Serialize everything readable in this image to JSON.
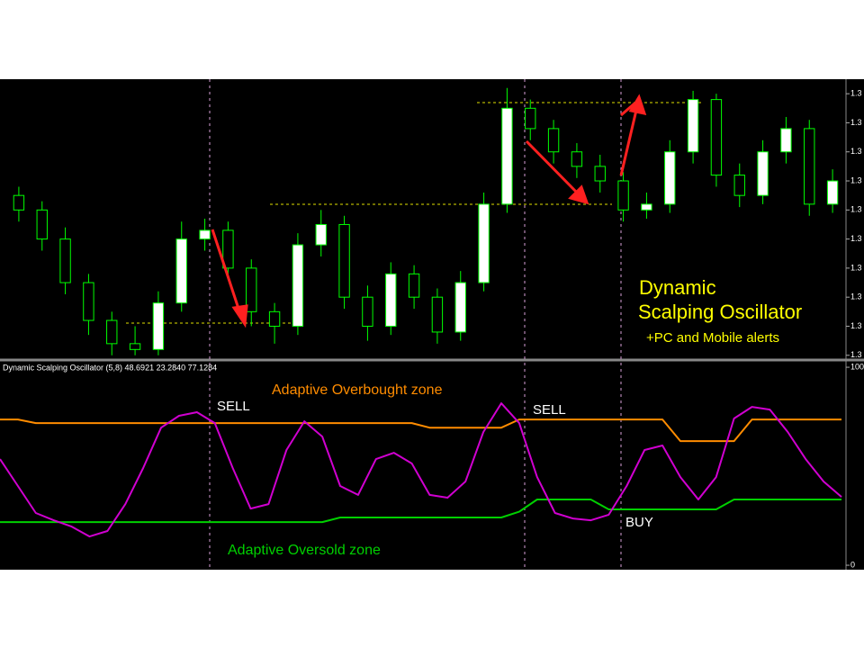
{
  "chart_data": [
    {
      "type": "candlestick",
      "open": [
        1.3455,
        1.345,
        1.344,
        1.3425,
        1.3412,
        1.3404,
        1.3402,
        1.3418,
        1.344,
        1.3443,
        1.343,
        1.3415,
        1.341,
        1.3438,
        1.3445,
        1.342,
        1.341,
        1.3428,
        1.342,
        1.3408,
        1.3425,
        1.3452,
        1.3485,
        1.3478,
        1.347,
        1.3465,
        1.346,
        1.345,
        1.3452,
        1.347,
        1.3488,
        1.3462,
        1.3455,
        1.347,
        1.3478,
        1.3452
      ],
      "high": [
        1.3458,
        1.3453,
        1.3444,
        1.3428,
        1.3415,
        1.341,
        1.3422,
        1.3446,
        1.3447,
        1.3446,
        1.3433,
        1.3418,
        1.3442,
        1.345,
        1.3448,
        1.3424,
        1.3432,
        1.3431,
        1.3423,
        1.3429,
        1.3456,
        1.3492,
        1.3488,
        1.3481,
        1.3473,
        1.3469,
        1.3463,
        1.3456,
        1.3474,
        1.3491,
        1.349,
        1.3466,
        1.3474,
        1.3482,
        1.3481,
        1.3464
      ],
      "low": [
        1.3446,
        1.3436,
        1.3421,
        1.3407,
        1.34,
        1.34,
        1.34,
        1.3415,
        1.3436,
        1.3426,
        1.341,
        1.3404,
        1.3407,
        1.3434,
        1.3416,
        1.3405,
        1.3407,
        1.3416,
        1.3404,
        1.3405,
        1.3422,
        1.3449,
        1.3474,
        1.3466,
        1.3461,
        1.3456,
        1.3446,
        1.3447,
        1.3449,
        1.3466,
        1.3458,
        1.3451,
        1.3452,
        1.3466,
        1.3448,
        1.3449
      ],
      "close": [
        1.345,
        1.344,
        1.3425,
        1.3412,
        1.3404,
        1.3402,
        1.3418,
        1.344,
        1.3443,
        1.343,
        1.3415,
        1.341,
        1.3438,
        1.3445,
        1.342,
        1.341,
        1.3428,
        1.342,
        1.3408,
        1.3425,
        1.3452,
        1.3485,
        1.3478,
        1.347,
        1.3465,
        1.346,
        1.345,
        1.3452,
        1.347,
        1.3488,
        1.3462,
        1.3455,
        1.347,
        1.3478,
        1.3452,
        1.346
      ],
      "up_color": "#ffffff",
      "down_color": "#000000",
      "wick_color": "#00ff00",
      "ylim": [
        1.3399,
        1.3495
      ],
      "yticks": [
        {
          "value": 1.349,
          "label": "1.3"
        },
        {
          "value": 1.348,
          "label": "1.3"
        },
        {
          "value": 1.347,
          "label": "1.3"
        },
        {
          "value": 1.346,
          "label": "1.3"
        },
        {
          "value": 1.345,
          "label": "1.3"
        },
        {
          "value": 1.344,
          "label": "1.3"
        },
        {
          "value": 1.343,
          "label": "1.3"
        },
        {
          "value": 1.342,
          "label": "1.3"
        },
        {
          "value": 1.341,
          "label": "1.3"
        },
        {
          "value": 1.34,
          "label": "1.3"
        }
      ],
      "annotations": [
        {
          "text": "Dynamic",
          "color": "#ffff00"
        },
        {
          "text": "Scalping Oscillator",
          "color": "#ffff00"
        },
        {
          "text": "+PC and Mobile alerts",
          "color": "#ffff00"
        }
      ]
    },
    {
      "type": "line",
      "title": "Dynamic Scalping Oscillator (5,8) 48.6921 23.2840 77.1284",
      "ylim": [
        -1.8,
        102.3
      ],
      "yticks": [
        100,
        0
      ],
      "series": [
        {
          "color": "#ff8c00",
          "values": [
            73.6,
            73.6,
            71.8,
            71.8,
            71.8,
            71.8,
            71.8,
            71.8,
            71.8,
            71.8,
            71.8,
            71.8,
            71.8,
            71.8,
            71.8,
            71.8,
            71.8,
            71.8,
            71.8,
            71.8,
            71.8,
            71.8,
            71.8,
            71.8,
            69.5,
            69.5,
            69.5,
            69.5,
            69.5,
            73.6,
            73.6,
            73.6,
            73.6,
            73.6,
            73.6,
            73.6,
            73.6,
            73.6,
            62.7,
            62.7,
            62.7,
            62.7,
            73.6,
            73.6,
            73.6,
            73.6,
            73.6,
            73.6
          ]
        },
        {
          "color": "#00d000",
          "values": [
            21.8,
            21.8,
            21.8,
            21.8,
            21.8,
            21.8,
            21.8,
            21.8,
            21.8,
            21.8,
            21.8,
            21.8,
            21.8,
            21.8,
            21.8,
            21.8,
            21.8,
            21.8,
            21.8,
            24.1,
            24.1,
            24.1,
            24.1,
            24.1,
            24.1,
            24.1,
            24.1,
            24.1,
            24.1,
            27,
            33.2,
            33.2,
            33.2,
            33.2,
            28.2,
            28.2,
            28.2,
            28.2,
            28.2,
            28.2,
            28.2,
            33.2,
            33.2,
            33.2,
            33.2,
            33.2,
            33.2,
            33.2
          ]
        },
        {
          "color": "#d000d0",
          "values": [
            53.6,
            40,
            26.4,
            22.7,
            19.5,
            14.5,
            17.3,
            30.9,
            49.1,
            69.5,
            75.5,
            77.3,
            71.8,
            49.1,
            28.6,
            30.9,
            58.2,
            72.7,
            65,
            40,
            35.5,
            53.6,
            56.8,
            51.4,
            35.5,
            34.1,
            42.3,
            67.3,
            81.8,
            71.8,
            44.5,
            26.4,
            23.6,
            22.7,
            25.5,
            40,
            58.2,
            60.5,
            44.5,
            33.2,
            44.5,
            74.1,
            80,
            78.6,
            67.3,
            53.6,
            42.3,
            34.5
          ]
        }
      ],
      "annotations": [
        {
          "text": "SELL",
          "color": "#ffffff"
        },
        {
          "text": "SELL",
          "color": "#ffffff"
        },
        {
          "text": "BUY",
          "color": "#ffffff"
        },
        {
          "text": "Adaptive Overbought zone",
          "color": "#ff8c00"
        },
        {
          "text": "Adaptive Oversold zone",
          "color": "#00d000"
        }
      ]
    }
  ]
}
